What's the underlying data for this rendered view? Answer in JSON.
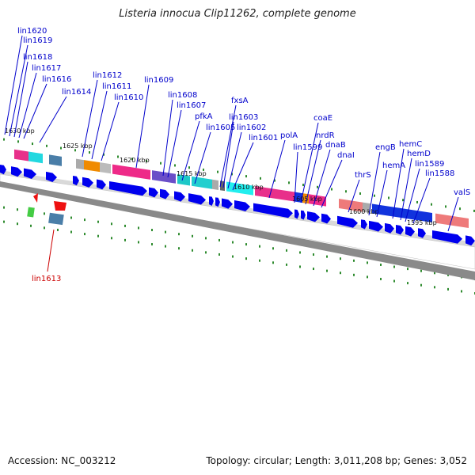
{
  "title": "Listeria innocua Clip11262, complete genome",
  "footer": {
    "accession": "Accession: NC_003212",
    "summary": "Topology: circular; Length: 3,011,208 bp; Genes: 3,052"
  },
  "kbp_labels": [
    "1630 kbp",
    "1625 kbp",
    "1620 kbp",
    "1615 kbp",
    "1610 kbp",
    "1605 kbp",
    "1600 kbp",
    "1595 kbp"
  ],
  "gene_labels": [
    "lin1620",
    "lin1619",
    "lin1618",
    "lin1617",
    "lin1616",
    "lin1614",
    "lin1612",
    "lin1611",
    "lin1610",
    "lin1609",
    "lin1608",
    "lin1607",
    "pfkA",
    "lin1605",
    "fxsA",
    "lin1603",
    "lin1602",
    "lin1601",
    "polA",
    "coaE",
    "lin1599",
    "nrdR",
    "dnaB",
    "dnaI",
    "thrS",
    "engB",
    "hemA",
    "hemC",
    "hemD",
    "lin1589",
    "lin1588",
    "valS"
  ],
  "reverse_labels": [
    "lin1613"
  ],
  "colors": {
    "gene_label": "#0000cc",
    "reverse_label": "#cc0000",
    "cds": "#0000ee",
    "tick": "#228b22",
    "backbone": "#9a9a9a"
  }
}
